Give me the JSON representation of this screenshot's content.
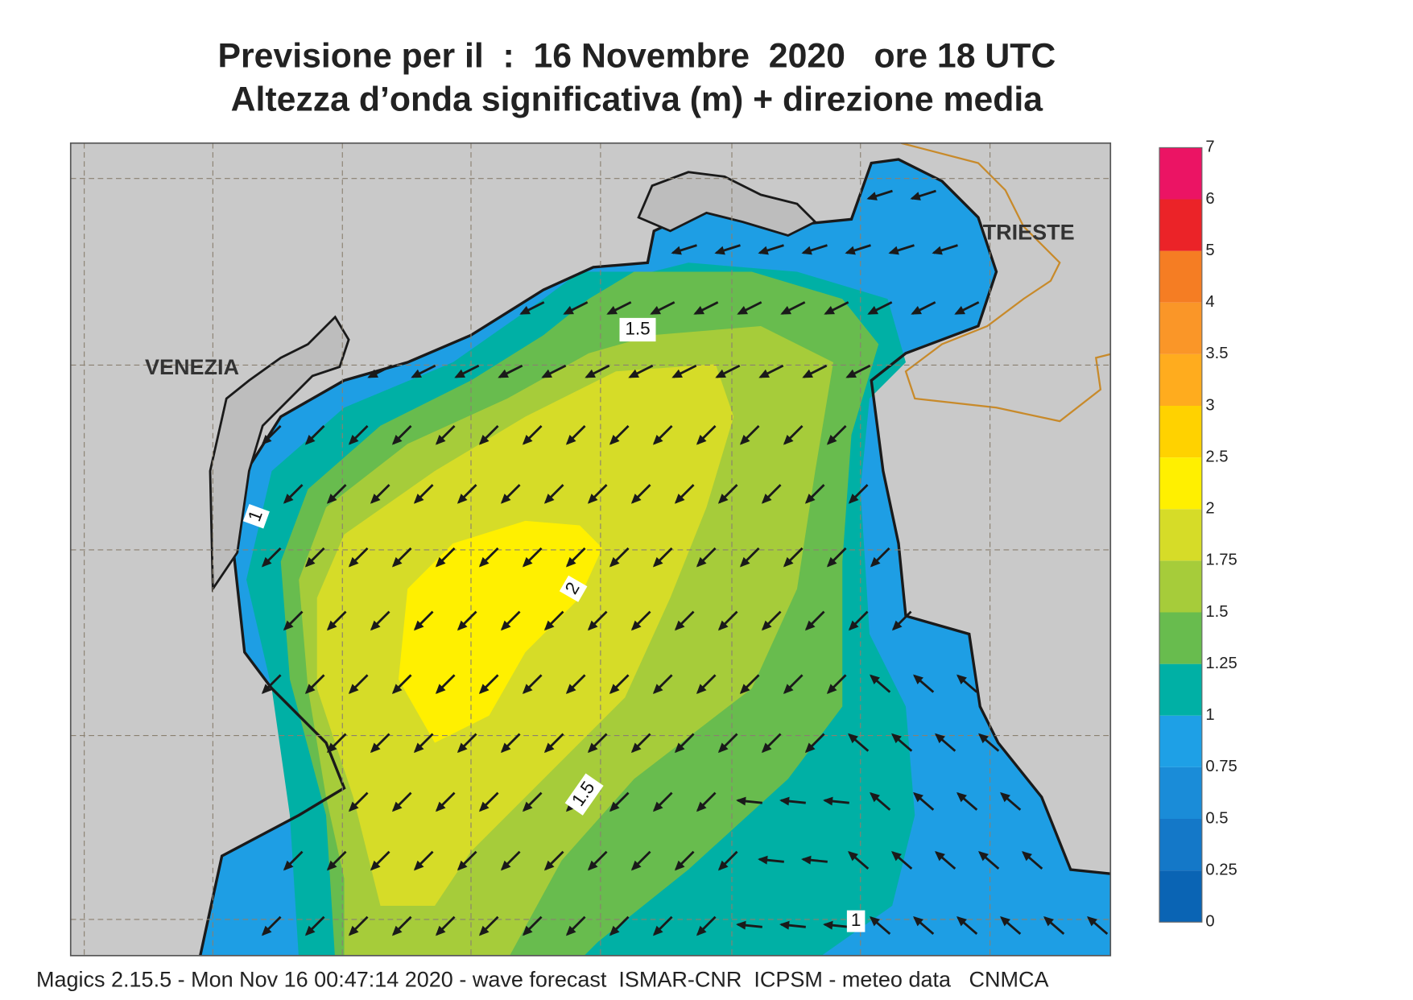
{
  "header": {
    "title": "Previsione per il  :  16 Novembre  2020   ore 18 UTC",
    "subtitle": "Altezza d’onda significativa (m) + direzione media"
  },
  "map": {
    "place_labels": [
      "VENEZIA",
      "TRIESTE"
    ],
    "contour_labels": [
      "1.5",
      "2",
      "1",
      "1.5",
      "1"
    ]
  },
  "legend": {
    "levels": [
      0,
      0.25,
      0.5,
      0.75,
      1,
      1.25,
      1.5,
      1.75,
      2,
      2.5,
      3,
      3.5,
      4,
      5,
      6,
      7
    ],
    "colors": [
      "#0a64b4",
      "#1478c8",
      "#1a8cd8",
      "#1ea0e6",
      "#00b0a5",
      "#68bc4e",
      "#a6cc3a",
      "#d6dc28",
      "#fff000",
      "#ffd200",
      "#ffac1e",
      "#fa9628",
      "#f57d23",
      "#eb2328",
      "#eb1464"
    ]
  },
  "footer": "Magics 2.15.5 - Mon Nov 16 00:47:14 2020 - wave forecast  ISMAR-CNR  ICPSM - meteo data   CNMCA"
}
